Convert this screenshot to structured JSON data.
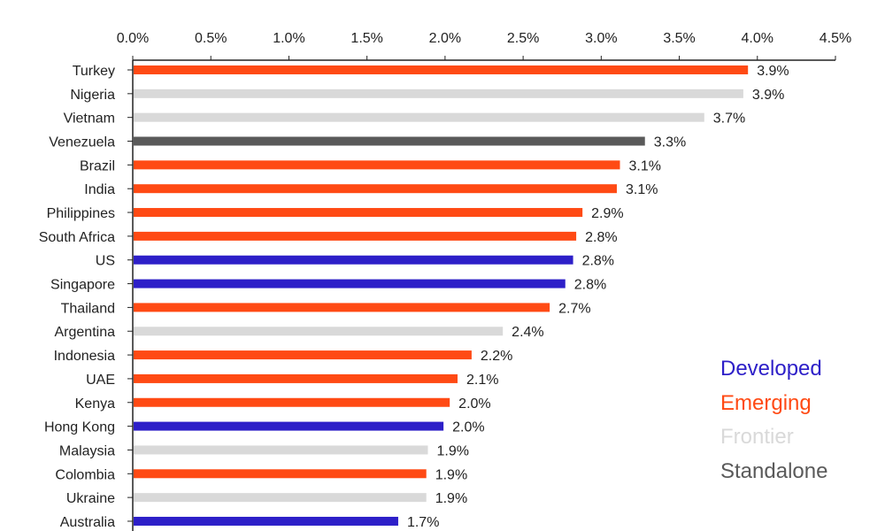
{
  "chart_data": {
    "type": "bar",
    "orientation": "horizontal",
    "title": "",
    "xlabel": "",
    "ylabel": "",
    "xlim": [
      0,
      4.5
    ],
    "x_ticks": [
      0,
      0.5,
      1.0,
      1.5,
      2.0,
      2.5,
      3.0,
      3.5,
      4.0,
      4.5
    ],
    "x_tick_labels": [
      "0.0%",
      "0.5%",
      "1.0%",
      "1.5%",
      "2.0%",
      "2.5%",
      "3.0%",
      "3.5%",
      "4.0%",
      "4.5%"
    ],
    "x_axis_position": "top",
    "grid": false,
    "legend_position": "bottom-right",
    "categories": [
      "Turkey",
      "Nigeria",
      "Vietnam",
      "Venezuela",
      "Brazil",
      "India",
      "Philippines",
      "South Africa",
      "US",
      "Singapore",
      "Thailand",
      "Argentina",
      "Indonesia",
      "UAE",
      "Kenya",
      "Hong Kong",
      "Malaysia",
      "Colombia",
      "Ukraine",
      "Australia"
    ],
    "values": [
      3.94,
      3.91,
      3.66,
      3.28,
      3.12,
      3.1,
      2.88,
      2.84,
      2.82,
      2.77,
      2.67,
      2.37,
      2.17,
      2.08,
      2.03,
      1.99,
      1.89,
      1.88,
      1.88,
      1.7
    ],
    "value_labels": [
      "3.9%",
      "3.9%",
      "3.7%",
      "3.3%",
      "3.1%",
      "3.1%",
      "2.9%",
      "2.8%",
      "2.8%",
      "2.8%",
      "2.7%",
      "2.4%",
      "2.2%",
      "2.1%",
      "2.0%",
      "2.0%",
      "1.9%",
      "1.9%",
      "1.9%",
      "1.7%"
    ],
    "groups": [
      "Emerging",
      "Frontier",
      "Frontier",
      "Standalone",
      "Emerging",
      "Emerging",
      "Emerging",
      "Emerging",
      "Developed",
      "Developed",
      "Emerging",
      "Frontier",
      "Emerging",
      "Emerging",
      "Emerging",
      "Developed",
      "Frontier",
      "Emerging",
      "Frontier",
      "Developed"
    ],
    "legend": [
      {
        "label": "Developed",
        "color": "#2d1fc8"
      },
      {
        "label": "Emerging",
        "color": "#ff4a14"
      },
      {
        "label": "Frontier",
        "color": "#d9d9d9"
      },
      {
        "label": "Standalone",
        "color": "#5a5a5a"
      }
    ]
  }
}
